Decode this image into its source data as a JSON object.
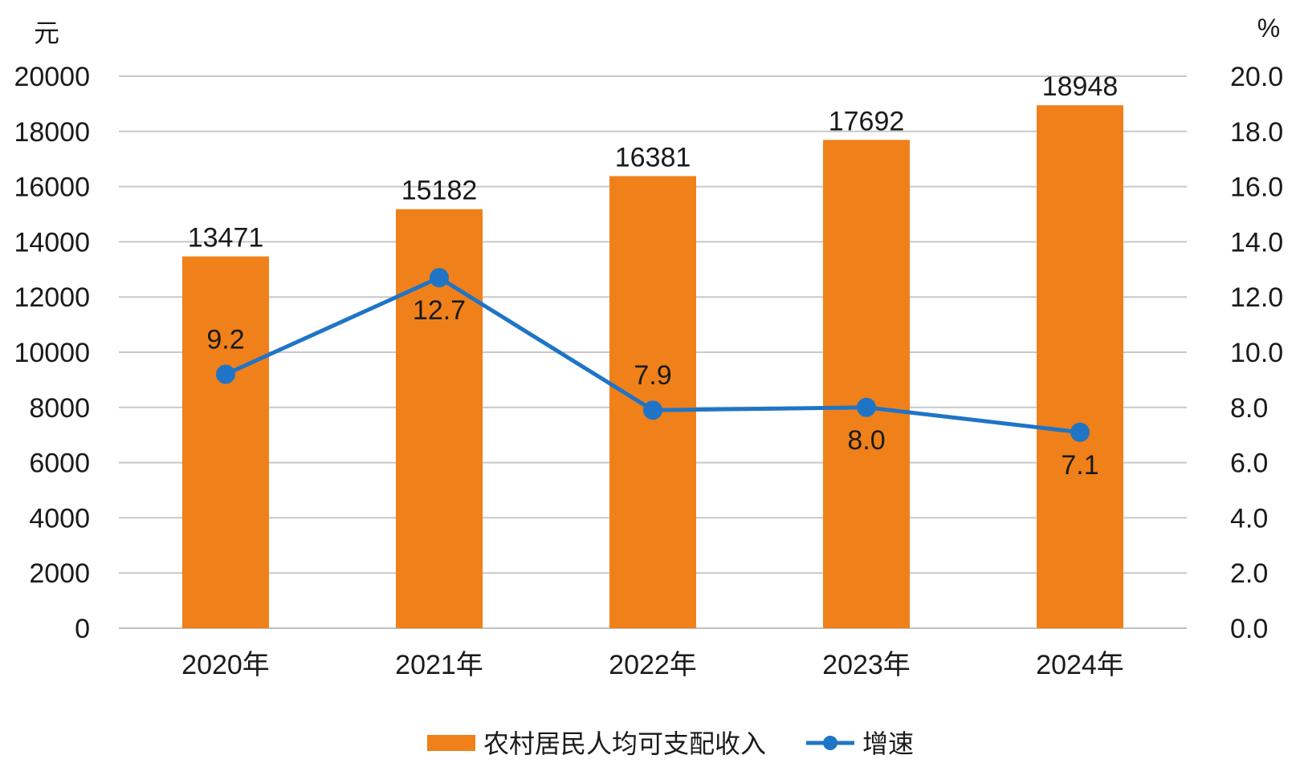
{
  "colors": {
    "bar": "#f08019",
    "line": "#1f74c6",
    "grid": "#c8c8c8",
    "text": "#1a1a1a"
  },
  "units": {
    "left": "元",
    "right": "%"
  },
  "legend": {
    "bar_label": "农村居民人均可支配收入",
    "line_label": "增速",
    "placement": "bottom-center"
  },
  "chart_data": {
    "type": "bar",
    "categories": [
      "2020年",
      "2021年",
      "2022年",
      "2023年",
      "2024年"
    ],
    "series": [
      {
        "name": "农村居民人均可支配收入",
        "type": "bar",
        "axis": "left",
        "values": [
          13471,
          15182,
          16381,
          17692,
          18948
        ],
        "labels": [
          "13471",
          "15182",
          "16381",
          "17692",
          "18948"
        ]
      },
      {
        "name": "增速",
        "type": "line",
        "axis": "right",
        "values": [
          9.2,
          12.7,
          7.9,
          8.0,
          7.1
        ],
        "labels": [
          "9.2",
          "12.7",
          "7.9",
          "8.0",
          "7.1"
        ]
      }
    ],
    "y_left": {
      "range": [
        0,
        20000
      ],
      "ticks": [
        "0",
        "2000",
        "4000",
        "6000",
        "8000",
        "10000",
        "12000",
        "14000",
        "16000",
        "18000",
        "20000"
      ]
    },
    "y_right": {
      "range": [
        0,
        20
      ],
      "ticks": [
        "0.0",
        "2.0",
        "4.0",
        "6.0",
        "8.0",
        "10.0",
        "12.0",
        "14.0",
        "16.0",
        "18.0",
        "20.0"
      ]
    },
    "grid": true
  }
}
